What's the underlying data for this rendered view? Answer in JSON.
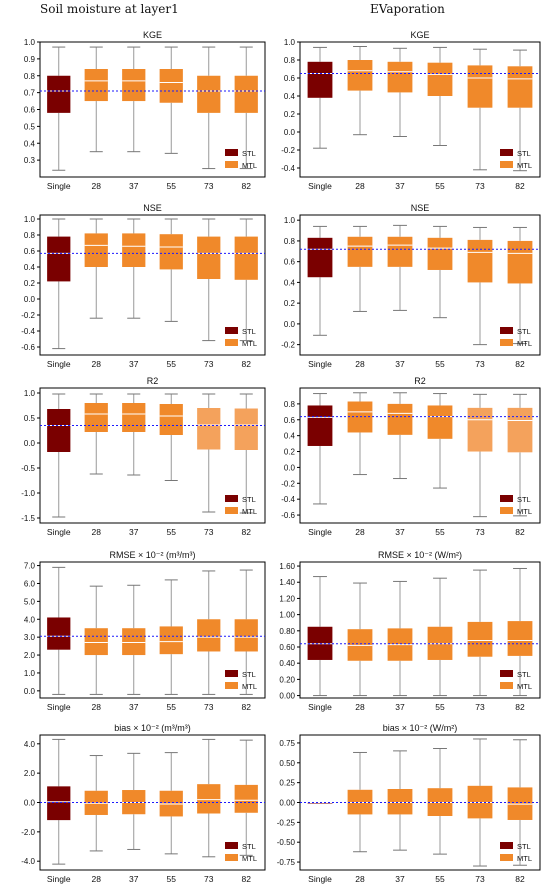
{
  "columns": [
    {
      "title": "Soil moisture at layer1"
    },
    {
      "title": "EVaporation"
    }
  ],
  "colors": {
    "stl": "#7a0000",
    "mtl": "#f0892a",
    "mtl_light": "#f4a25c",
    "whisker": "#999999",
    "median": "#ffffff",
    "reference": "#1a1aff"
  },
  "chart_data": [
    {
      "type": "box",
      "title": "KGE",
      "categories": [
        "Single",
        "28",
        "37",
        "55",
        "73",
        "82"
      ],
      "ylim": [
        0.2,
        1.0
      ],
      "yticks": [
        0.3,
        0.4,
        0.5,
        0.6,
        0.7,
        0.8,
        0.9,
        1.0
      ],
      "tick_labels": [
        "0.3",
        "0.4",
        "0.5",
        "0.6",
        "0.7",
        "0.8",
        "0.9",
        "1.0"
      ],
      "reference": 0.71,
      "legend": [
        "STL",
        "MTL"
      ],
      "legend_position": "bottom-right",
      "boxes": [
        {
          "whislo": 0.24,
          "q1": 0.58,
          "med": 0.71,
          "q3": 0.8,
          "whishi": 0.97
        },
        {
          "whislo": 0.35,
          "q1": 0.65,
          "med": 0.77,
          "q3": 0.84,
          "whishi": 0.97
        },
        {
          "whislo": 0.35,
          "q1": 0.65,
          "med": 0.77,
          "q3": 0.84,
          "whishi": 0.97
        },
        {
          "whislo": 0.34,
          "q1": 0.64,
          "med": 0.76,
          "q3": 0.84,
          "whishi": 0.97
        },
        {
          "whislo": 0.25,
          "q1": 0.58,
          "med": 0.71,
          "q3": 0.8,
          "whishi": 0.97
        },
        {
          "whislo": 0.25,
          "q1": 0.58,
          "med": 0.71,
          "q3": 0.8,
          "whishi": 0.97
        }
      ]
    },
    {
      "type": "box",
      "title": "KGE",
      "categories": [
        "Single",
        "28",
        "37",
        "55",
        "73",
        "82"
      ],
      "ylim": [
        -0.5,
        1.0
      ],
      "yticks": [
        -0.4,
        -0.2,
        0.0,
        0.2,
        0.4,
        0.6,
        0.8,
        1.0
      ],
      "tick_labels": [
        "-0.4",
        "-0.2",
        "0.0",
        "0.2",
        "0.4",
        "0.6",
        "0.8",
        "1.0"
      ],
      "reference": 0.65,
      "legend": [
        "STL",
        "MTL"
      ],
      "legend_position": "bottom-right",
      "boxes": [
        {
          "whislo": -0.18,
          "q1": 0.38,
          "med": 0.65,
          "q3": 0.78,
          "whishi": 0.94
        },
        {
          "whislo": -0.03,
          "q1": 0.46,
          "med": 0.68,
          "q3": 0.8,
          "whishi": 0.95
        },
        {
          "whislo": -0.05,
          "q1": 0.44,
          "med": 0.67,
          "q3": 0.78,
          "whishi": 0.93
        },
        {
          "whislo": -0.15,
          "q1": 0.4,
          "med": 0.64,
          "q3": 0.77,
          "whishi": 0.94
        },
        {
          "whislo": -0.42,
          "q1": 0.27,
          "med": 0.6,
          "q3": 0.74,
          "whishi": 0.92
        },
        {
          "whislo": -0.43,
          "q1": 0.27,
          "med": 0.59,
          "q3": 0.73,
          "whishi": 0.91
        }
      ]
    },
    {
      "type": "box",
      "title": "NSE",
      "categories": [
        "Single",
        "28",
        "37",
        "55",
        "73",
        "82"
      ],
      "ylim": [
        -0.7,
        1.05
      ],
      "yticks": [
        -0.6,
        -0.4,
        -0.2,
        0.0,
        0.2,
        0.4,
        0.6,
        0.8,
        1.0
      ],
      "tick_labels": [
        "-0.6",
        "-0.4",
        "-0.2",
        "0.0",
        "0.2",
        "0.4",
        "0.6",
        "0.8",
        "1.0"
      ],
      "reference": 0.57,
      "legend": [
        "STL",
        "MTL"
      ],
      "legend_position": "bottom-right",
      "boxes": [
        {
          "whislo": -0.62,
          "q1": 0.22,
          "med": 0.57,
          "q3": 0.78,
          "whishi": 1.0
        },
        {
          "whislo": -0.24,
          "q1": 0.4,
          "med": 0.67,
          "q3": 0.82,
          "whishi": 1.0
        },
        {
          "whislo": -0.24,
          "q1": 0.4,
          "med": 0.66,
          "q3": 0.82,
          "whishi": 1.0
        },
        {
          "whislo": -0.28,
          "q1": 0.37,
          "med": 0.65,
          "q3": 0.81,
          "whishi": 1.0
        },
        {
          "whislo": -0.52,
          "q1": 0.25,
          "med": 0.57,
          "q3": 0.78,
          "whishi": 1.0
        },
        {
          "whislo": -0.52,
          "q1": 0.24,
          "med": 0.57,
          "q3": 0.78,
          "whishi": 1.0
        }
      ]
    },
    {
      "type": "box",
      "title": "NSE",
      "categories": [
        "Single",
        "28",
        "37",
        "55",
        "73",
        "82"
      ],
      "ylim": [
        -0.3,
        1.05
      ],
      "yticks": [
        -0.2,
        0.0,
        0.2,
        0.4,
        0.6,
        0.8,
        1.0
      ],
      "tick_labels": [
        "-0.2",
        "0.0",
        "0.2",
        "0.4",
        "0.6",
        "0.8",
        "1.0"
      ],
      "reference": 0.72,
      "legend": [
        "STL",
        "MTL"
      ],
      "legend_position": "bottom-right",
      "boxes": [
        {
          "whislo": -0.11,
          "q1": 0.45,
          "med": 0.72,
          "q3": 0.83,
          "whishi": 0.94
        },
        {
          "whislo": 0.12,
          "q1": 0.55,
          "med": 0.75,
          "q3": 0.84,
          "whishi": 0.94
        },
        {
          "whislo": 0.13,
          "q1": 0.55,
          "med": 0.76,
          "q3": 0.84,
          "whishi": 0.95
        },
        {
          "whislo": 0.06,
          "q1": 0.52,
          "med": 0.73,
          "q3": 0.83,
          "whishi": 0.94
        },
        {
          "whislo": -0.2,
          "q1": 0.4,
          "med": 0.69,
          "q3": 0.81,
          "whishi": 0.93
        },
        {
          "whislo": -0.19,
          "q1": 0.39,
          "med": 0.68,
          "q3": 0.8,
          "whishi": 0.93
        }
      ]
    },
    {
      "type": "box",
      "title": "R2",
      "categories": [
        "Single",
        "28",
        "37",
        "55",
        "73",
        "82"
      ],
      "ylim": [
        -1.6,
        1.1
      ],
      "yticks": [
        -1.5,
        -1.0,
        -0.5,
        0.0,
        0.5,
        1.0
      ],
      "tick_labels": [
        "-1.5",
        "-1.0",
        "-0.5",
        "0.0",
        "0.5",
        "1.0"
      ],
      "reference": 0.35,
      "legend": [
        "STL",
        "MTL"
      ],
      "legend_position": "bottom-right",
      "boxes": [
        {
          "whislo": -1.48,
          "q1": -0.18,
          "med": 0.35,
          "q3": 0.68,
          "whishi": 0.98
        },
        {
          "whislo": -0.62,
          "q1": 0.22,
          "med": 0.58,
          "q3": 0.8,
          "whishi": 0.98
        },
        {
          "whislo": -0.64,
          "q1": 0.22,
          "med": 0.58,
          "q3": 0.8,
          "whishi": 0.98
        },
        {
          "whislo": -0.75,
          "q1": 0.16,
          "med": 0.54,
          "q3": 0.78,
          "whishi": 0.98
        },
        {
          "whislo": -1.38,
          "q1": -0.13,
          "med": 0.36,
          "q3": 0.7,
          "whishi": 0.98
        },
        {
          "whislo": -1.4,
          "q1": -0.14,
          "med": 0.36,
          "q3": 0.69,
          "whishi": 0.98
        }
      ]
    },
    {
      "type": "box",
      "title": "R2",
      "categories": [
        "Single",
        "28",
        "37",
        "55",
        "73",
        "82"
      ],
      "ylim": [
        -0.7,
        1.0
      ],
      "yticks": [
        -0.6,
        -0.4,
        -0.2,
        0.0,
        0.2,
        0.4,
        0.6,
        0.8
      ],
      "tick_labels": [
        "-0.6",
        "-0.4",
        "-0.2",
        "0.0",
        "0.2",
        "0.4",
        "0.6",
        "0.8"
      ],
      "reference": 0.64,
      "legend": [
        "STL",
        "MTL"
      ],
      "legend_position": "bottom-right",
      "boxes": [
        {
          "whislo": -0.46,
          "q1": 0.27,
          "med": 0.63,
          "q3": 0.78,
          "whishi": 0.93
        },
        {
          "whislo": -0.09,
          "q1": 0.44,
          "med": 0.7,
          "q3": 0.83,
          "whishi": 0.94
        },
        {
          "whislo": -0.14,
          "q1": 0.41,
          "med": 0.68,
          "q3": 0.8,
          "whishi": 0.94
        },
        {
          "whislo": -0.26,
          "q1": 0.36,
          "med": 0.64,
          "q3": 0.78,
          "whishi": 0.93
        },
        {
          "whislo": -0.62,
          "q1": 0.2,
          "med": 0.6,
          "q3": 0.75,
          "whishi": 0.92
        },
        {
          "whislo": -0.61,
          "q1": 0.19,
          "med": 0.59,
          "q3": 0.75,
          "whishi": 0.92
        }
      ]
    },
    {
      "type": "box",
      "title": "RMSE × 10⁻² (m³/m³)",
      "categories": [
        "Single",
        "28",
        "37",
        "55",
        "73",
        "82"
      ],
      "ylim": [
        -0.4,
        7.2
      ],
      "yticks": [
        0,
        1,
        2,
        3,
        4,
        5,
        6,
        7
      ],
      "tick_labels": [
        "0.0",
        "1.0",
        "2.0",
        "3.0",
        "4.0",
        "5.0",
        "6.0",
        "7.0"
      ],
      "reference": 3.05,
      "legend": [
        "STL",
        "MTL"
      ],
      "legend_position": "bottom-right",
      "boxes": [
        {
          "whislo": -0.2,
          "q1": 2.3,
          "med": 3.05,
          "q3": 4.1,
          "whishi": 6.9
        },
        {
          "whislo": -0.2,
          "q1": 2.0,
          "med": 2.7,
          "q3": 3.5,
          "whishi": 5.85
        },
        {
          "whislo": -0.2,
          "q1": 2.0,
          "med": 2.7,
          "q3": 3.5,
          "whishi": 5.9
        },
        {
          "whislo": -0.2,
          "q1": 2.05,
          "med": 2.75,
          "q3": 3.6,
          "whishi": 6.2
        },
        {
          "whislo": -0.2,
          "q1": 2.2,
          "med": 3.0,
          "q3": 4.0,
          "whishi": 6.7
        },
        {
          "whislo": -0.2,
          "q1": 2.2,
          "med": 3.0,
          "q3": 4.0,
          "whishi": 6.75
        }
      ]
    },
    {
      "type": "box",
      "title": "RMSE × 10⁻² (W/m²)",
      "categories": [
        "Single",
        "28",
        "37",
        "55",
        "73",
        "82"
      ],
      "ylim": [
        -0.03,
        1.65
      ],
      "yticks": [
        0,
        0.2,
        0.4,
        0.6,
        0.8,
        1.0,
        1.2,
        1.4,
        1.6
      ],
      "tick_labels": [
        "0.00",
        "0.20",
        "0.40",
        "0.60",
        "0.80",
        "1.00",
        "1.20",
        "1.40",
        "1.60"
      ],
      "reference": 0.64,
      "legend": [
        "STL",
        "MTL"
      ],
      "legend_position": "bottom-right",
      "boxes": [
        {
          "whislo": 0.0,
          "q1": 0.44,
          "med": 0.64,
          "q3": 0.85,
          "whishi": 1.47
        },
        {
          "whislo": 0.0,
          "q1": 0.43,
          "med": 0.62,
          "q3": 0.82,
          "whishi": 1.39
        },
        {
          "whislo": 0.0,
          "q1": 0.43,
          "med": 0.63,
          "q3": 0.83,
          "whishi": 1.41
        },
        {
          "whislo": 0.0,
          "q1": 0.44,
          "med": 0.64,
          "q3": 0.85,
          "whishi": 1.45
        },
        {
          "whislo": 0.0,
          "q1": 0.48,
          "med": 0.68,
          "q3": 0.91,
          "whishi": 1.55
        },
        {
          "whislo": 0.0,
          "q1": 0.49,
          "med": 0.68,
          "q3": 0.92,
          "whishi": 1.57
        }
      ]
    },
    {
      "type": "box",
      "title": "bias × 10⁻² (m³/m³)",
      "categories": [
        "Single",
        "28",
        "37",
        "55",
        "73",
        "82"
      ],
      "ylim": [
        -4.6,
        4.6
      ],
      "yticks": [
        -4,
        -2,
        0,
        2,
        4
      ],
      "tick_labels": [
        "-4.0",
        "-2.0",
        "0.0",
        "2.0",
        "4.0"
      ],
      "reference": 0.0,
      "legend": [
        "STL",
        "MTL"
      ],
      "legend_position": "bottom-right",
      "boxes": [
        {
          "whislo": -4.2,
          "q1": -1.2,
          "med": 0.05,
          "q3": 1.1,
          "whishi": 4.3
        },
        {
          "whislo": -3.3,
          "q1": -0.85,
          "med": -0.05,
          "q3": 0.8,
          "whishi": 3.2
        },
        {
          "whislo": -3.2,
          "q1": -0.8,
          "med": 0.0,
          "q3": 0.85,
          "whishi": 3.35
        },
        {
          "whislo": -3.5,
          "q1": -0.95,
          "med": -0.1,
          "q3": 0.8,
          "whishi": 3.4
        },
        {
          "whislo": -3.7,
          "q1": -0.75,
          "med": 0.2,
          "q3": 1.25,
          "whishi": 4.3
        },
        {
          "whislo": -3.6,
          "q1": -0.7,
          "med": 0.15,
          "q3": 1.2,
          "whishi": 4.25
        }
      ]
    },
    {
      "type": "box",
      "title": "bias × 10⁻² (W/m²)",
      "categories": [
        "Single",
        "28",
        "37",
        "55",
        "73",
        "82"
      ],
      "ylim": [
        -0.85,
        0.85
      ],
      "yticks": [
        -0.75,
        -0.5,
        -0.25,
        0.0,
        0.25,
        0.5,
        0.75
      ],
      "tick_labels": [
        "-0.75",
        "-0.50",
        "-0.25",
        "0.00",
        "0.25",
        "0.50",
        "0.75"
      ],
      "reference": 0.0,
      "legend": [
        "STL",
        "MTL"
      ],
      "legend_position": "bottom-right",
      "boxes": [
        {
          "whislo": 0.0,
          "q1": 0.0,
          "med": 0.0,
          "q3": 0.0,
          "whishi": 0.0
        },
        {
          "whislo": -0.62,
          "q1": -0.15,
          "med": 0.0,
          "q3": 0.16,
          "whishi": 0.63
        },
        {
          "whislo": -0.6,
          "q1": -0.15,
          "med": 0.0,
          "q3": 0.17,
          "whishi": 0.65
        },
        {
          "whislo": -0.65,
          "q1": -0.17,
          "med": 0.0,
          "q3": 0.18,
          "whishi": 0.68
        },
        {
          "whislo": -0.8,
          "q1": -0.2,
          "med": 0.0,
          "q3": 0.21,
          "whishi": 0.8
        },
        {
          "whislo": -0.79,
          "q1": -0.22,
          "med": -0.02,
          "q3": 0.19,
          "whishi": 0.79
        }
      ]
    }
  ]
}
